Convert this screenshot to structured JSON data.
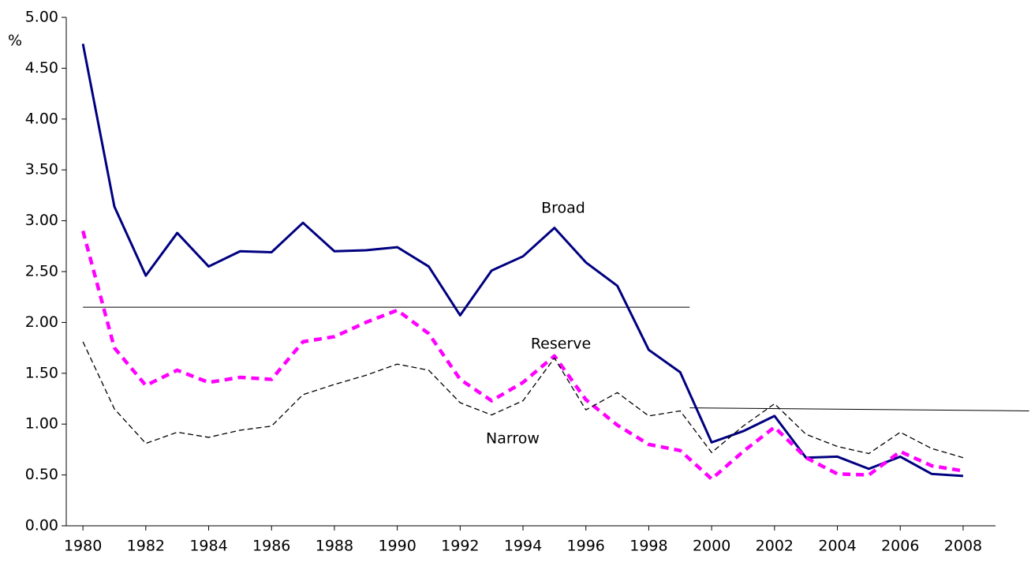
{
  "chart_data": {
    "type": "line",
    "y_unit": "%",
    "x": [
      1980,
      1981,
      1982,
      1983,
      1984,
      1985,
      1986,
      1987,
      1988,
      1989,
      1990,
      1991,
      1992,
      1993,
      1994,
      1995,
      1996,
      1997,
      1998,
      1999,
      2000,
      2001,
      2002,
      2003,
      2004,
      2005,
      2006,
      2007,
      2008
    ],
    "series": [
      {
        "name": "Broad",
        "color": "#000080",
        "line_style": "solid",
        "values": [
          4.74,
          3.14,
          2.46,
          2.88,
          2.55,
          2.7,
          2.69,
          2.98,
          2.7,
          2.71,
          2.74,
          2.55,
          2.07,
          2.51,
          2.65,
          2.93,
          2.59,
          2.36,
          1.73,
          1.51,
          0.82,
          0.93,
          1.08,
          0.67,
          0.68,
          0.56,
          0.68,
          0.51,
          0.49
        ]
      },
      {
        "name": "Reserve",
        "color": "#ff00ff",
        "line_style": "bold-dashed",
        "values": [
          2.9,
          1.75,
          1.38,
          1.53,
          1.41,
          1.46,
          1.44,
          1.81,
          1.86,
          2.0,
          2.12,
          1.89,
          1.44,
          1.23,
          1.41,
          1.67,
          1.24,
          0.99,
          0.8,
          0.74,
          0.46,
          0.73,
          0.97,
          0.67,
          0.51,
          0.5,
          0.73,
          0.59,
          0.54
        ]
      },
      {
        "name": "Narrow",
        "color": "#000000",
        "line_style": "dashed",
        "values": [
          1.81,
          1.15,
          0.81,
          0.92,
          0.87,
          0.94,
          0.98,
          1.29,
          1.39,
          1.48,
          1.59,
          1.53,
          1.21,
          1.09,
          1.23,
          1.65,
          1.14,
          1.31,
          1.08,
          1.13,
          0.72,
          0.98,
          1.2,
          0.9,
          0.78,
          0.71,
          0.92,
          0.76,
          0.67
        ]
      }
    ],
    "reference_lines": [
      {
        "x": [
          1980,
          1999.3
        ],
        "y": [
          2.15,
          2.15
        ]
      },
      {
        "x": [
          1999.3,
          2010.1
        ],
        "y": [
          1.16,
          1.13
        ]
      }
    ],
    "xlim": [
      1979.47,
      2009.03
    ],
    "xticks": [
      1980,
      1982,
      1984,
      1986,
      1988,
      1990,
      1992,
      1994,
      1996,
      1998,
      2000,
      2002,
      2004,
      2006,
      2008
    ],
    "ylim": [
      0,
      5
    ],
    "yticks": [
      {
        "value": 0,
        "label": "0.00"
      },
      {
        "value": 0.5,
        "label": "0.50"
      },
      {
        "value": 1,
        "label": "1.00"
      },
      {
        "value": 1.5,
        "label": "1.50"
      },
      {
        "value": 2,
        "label": "2.00"
      },
      {
        "value": 2.5,
        "label": "2.50"
      },
      {
        "value": 3,
        "label": "3.00"
      },
      {
        "value": 3.5,
        "label": "3.50"
      },
      {
        "value": 4,
        "label": "4.00"
      },
      {
        "value": 4.5,
        "label": "4.50"
      },
      {
        "value": 5,
        "label": "5.00"
      }
    ],
    "grid": false
  }
}
